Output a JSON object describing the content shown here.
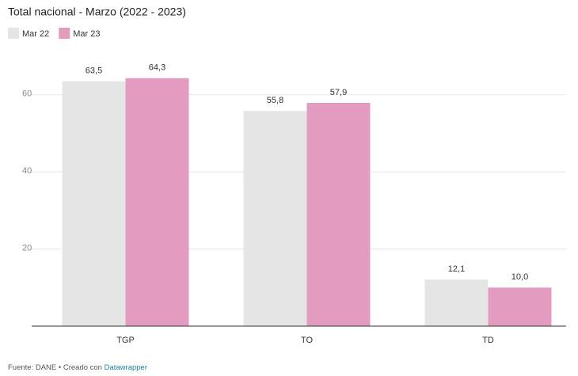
{
  "chart_data": {
    "type": "bar",
    "title": "Total nacional - Marzo (2022 - 2023)",
    "categories": [
      "TGP",
      "TO",
      "TD"
    ],
    "series": [
      {
        "name": "Mar 22",
        "color": "#e5e5e5",
        "values": [
          63.5,
          55.8,
          12.1
        ],
        "value_labels": [
          "63,5",
          "55,8",
          "12,1"
        ]
      },
      {
        "name": "Mar 23",
        "color": "#e39cc0",
        "values": [
          64.3,
          57.9,
          10.0
        ],
        "value_labels": [
          "64,3",
          "57,9",
          "10,0"
        ]
      }
    ],
    "ylim": [
      0,
      70
    ],
    "yticks": [
      20,
      40,
      60
    ],
    "grid": true,
    "source": "Fuente: DANE • Creado con ",
    "source_link": "Datawrapper"
  }
}
